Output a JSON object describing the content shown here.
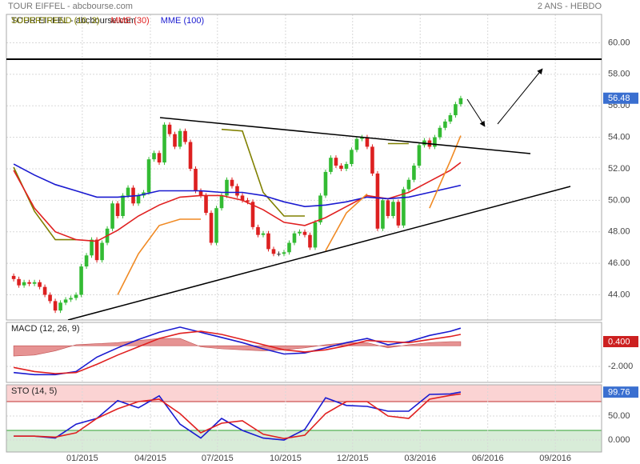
{
  "chart_data": [
    {
      "type": "candlestick",
      "title": "TOUR EIFFEL - abcbourse.com",
      "subtitle": "2 ANS - HEBDO",
      "open": [
        45.2,
        45.0,
        44.6,
        44.8,
        44.7,
        44.8,
        44.5,
        44.0,
        43.6,
        43.0,
        43.5,
        43.7,
        43.8,
        44.0,
        45.8,
        46.5,
        47.5,
        46.2,
        47.3,
        48.2,
        49.8,
        49.0,
        50.3,
        50.8,
        49.8,
        50.3,
        50.5,
        52.6,
        53.0,
        52.4,
        54.8,
        54.2,
        53.4,
        54.4,
        53.7,
        52.0,
        50.6,
        50.3,
        49.2,
        47.3,
        49.5,
        50.3,
        51.3,
        50.9,
        50.3,
        50.0,
        49.9,
        48.3,
        47.8,
        47.9,
        46.9,
        46.6,
        46.6,
        46.7,
        47.3,
        47.9,
        48.0,
        47.8,
        47.0,
        48.6,
        50.3,
        51.8,
        52.7,
        52.2,
        52.0,
        52.3,
        53.2,
        53.9,
        54.0,
        53.4,
        51.7,
        48.2,
        50.0,
        49.0,
        49.9,
        48.4,
        50.7,
        51.3,
        52.2,
        53.5,
        53.8,
        53.4,
        54.0,
        54.6,
        55.0,
        55.4,
        56.1
      ],
      "close": [
        45.0,
        44.6,
        44.8,
        44.7,
        44.8,
        44.5,
        44.0,
        43.6,
        43.0,
        43.5,
        43.7,
        43.8,
        44.0,
        45.8,
        46.5,
        47.5,
        46.2,
        47.3,
        48.2,
        49.8,
        49.0,
        50.3,
        50.8,
        49.8,
        50.3,
        50.5,
        52.6,
        53.0,
        52.4,
        54.8,
        54.2,
        53.4,
        54.4,
        53.7,
        52.0,
        50.6,
        50.3,
        49.2,
        47.3,
        49.5,
        50.3,
        51.3,
        50.9,
        50.3,
        50.0,
        49.9,
        48.3,
        47.8,
        47.9,
        46.9,
        46.6,
        46.6,
        46.7,
        47.3,
        47.9,
        48.0,
        47.8,
        47.0,
        48.6,
        50.3,
        51.8,
        52.7,
        52.2,
        52.0,
        52.3,
        53.2,
        53.9,
        54.0,
        53.4,
        51.7,
        48.2,
        50.0,
        49.0,
        49.9,
        48.4,
        50.7,
        51.3,
        52.2,
        53.5,
        53.8,
        53.4,
        54.0,
        54.6,
        55.0,
        55.4,
        56.1,
        56.48
      ],
      "up_color": "#33bb33",
      "down_color": "#dd2020",
      "xlim": [
        -1.4,
        113.1
      ],
      "xticks": [
        {
          "value": 13.2,
          "label": "01/2015"
        },
        {
          "value": 26.3,
          "label": "04/2015"
        },
        {
          "value": 39.2,
          "label": "07/2015"
        },
        {
          "value": 52.3,
          "label": "10/2015"
        },
        {
          "value": 65.2,
          "label": "12/2015"
        },
        {
          "value": 78.2,
          "label": "03/2016"
        },
        {
          "value": 91.2,
          "label": "06/2016"
        },
        {
          "value": 104.2,
          "label": "09/2016"
        }
      ],
      "ylim": [
        42.4,
        61.8
      ],
      "yticks": [
        {
          "value": 44,
          "label": "44.00"
        },
        {
          "value": 46,
          "label": "46.00"
        },
        {
          "value": 48,
          "label": "48.00"
        },
        {
          "value": 50,
          "label": "50.00"
        },
        {
          "value": 52,
          "label": "52.00"
        },
        {
          "value": 54,
          "label": "54.00"
        },
        {
          "value": 56,
          "label": "56.00"
        },
        {
          "value": 58,
          "label": "58.00"
        },
        {
          "value": 60,
          "label": "60.00"
        }
      ],
      "grid": true,
      "current": 56.48,
      "current_color": "#3a6fd0",
      "line_x": [
        0,
        4,
        8,
        12,
        16,
        20,
        24,
        28,
        32,
        36,
        40,
        44,
        48,
        52,
        56,
        60,
        64,
        68,
        72,
        76,
        80,
        84,
        86
      ],
      "series": [
        {
          "name": "SUPERTREND (10, 3)",
          "color": "#808000",
          "values": [
            52.1,
            49.3,
            47.5,
            47.5,
            null,
            null,
            null,
            null,
            null,
            null,
            54.5,
            54.4,
            50.5,
            49.0,
            49.0,
            null,
            null,
            null,
            53.6,
            53.6,
            null,
            null,
            null
          ]
        },
        {
          "name": "MME (30)",
          "color": "#e02020",
          "values": [
            51.9,
            49.5,
            48.0,
            47.5,
            47.4,
            48.1,
            49.0,
            49.7,
            50.2,
            50.3,
            50.3,
            50.0,
            49.4,
            48.6,
            48.4,
            48.9,
            49.6,
            50.3,
            50.1,
            50.5,
            51.2,
            51.9,
            52.4
          ]
        },
        {
          "name": "MME (100)",
          "color": "#1a1ad0",
          "values": [
            52.3,
            51.6,
            51.0,
            50.6,
            50.2,
            50.2,
            50.3,
            50.6,
            50.6,
            50.6,
            50.5,
            50.5,
            50.3,
            49.9,
            49.6,
            49.7,
            49.9,
            50.2,
            50.1,
            50.2,
            50.5,
            50.8,
            50.95
          ]
        },
        {
          "color": "#f08a24",
          "values": [
            null,
            null,
            null,
            null,
            null,
            44.0,
            46.6,
            48.4,
            48.8,
            48.8,
            null,
            null,
            null,
            null,
            null,
            46.8,
            49.2,
            50.4,
            null,
            null,
            49.5,
            52.5,
            54.1
          ]
        }
      ]
    },
    {
      "type": "macd",
      "title": "MACD (12, 26, 9)",
      "ylim": [
        -3.55,
        2.26
      ],
      "yticks": [
        {
          "value": -2,
          "label": "-2.000"
        }
      ],
      "current": {
        "value": 0.4,
        "label": "0.400"
      },
      "current_color": "#cc2020",
      "histogram": {
        "color": "#e07878",
        "values": [
          -1.0,
          -0.9,
          -0.5,
          0.1,
          0.2,
          0.3,
          0.5,
          0.7,
          0.7,
          -0.1,
          -0.3,
          -0.4,
          -0.5,
          -0.4,
          -0.2,
          0.1,
          0.3,
          0.3,
          -0.2,
          0.1,
          0.3,
          0.4,
          0.4
        ]
      },
      "series": [
        {
          "color": "#1a1ad0",
          "values": [
            -2.6,
            -2.8,
            -2.8,
            -2.5,
            -1.1,
            -0.2,
            0.6,
            1.3,
            1.8,
            1.3,
            0.8,
            0.3,
            -0.3,
            -0.8,
            -0.7,
            -0.2,
            0.3,
            0.7,
            0.1,
            0.4,
            1.0,
            1.4,
            1.7
          ]
        },
        {
          "color": "#e02020",
          "values": [
            -2.1,
            -2.5,
            -2.7,
            -2.6,
            -1.8,
            -0.9,
            -0.1,
            0.7,
            1.2,
            1.4,
            1.1,
            0.6,
            0.1,
            -0.4,
            -0.6,
            -0.4,
            0.0,
            0.5,
            0.4,
            0.3,
            0.6,
            0.9,
            1.1
          ]
        }
      ]
    },
    {
      "type": "stochastic",
      "title": "STO (14, 5)",
      "ylim": [
        -25,
        115
      ],
      "yticks": [
        {
          "value": 50,
          "label": "50.00"
        },
        {
          "value": 0,
          "label": "0.000"
        }
      ],
      "current": 99.76,
      "current_color": "#3a6fd0",
      "overbought": 80,
      "oversold": 20,
      "overbought_color": "#fbd3d3",
      "oversold_color": "#d8ecd8",
      "series": [
        {
          "color": "#1a1ad0",
          "values": [
            8,
            8,
            4,
            33,
            45,
            82,
            67,
            92,
            33,
            4,
            45,
            20,
            4,
            0,
            22,
            88,
            72,
            70,
            60,
            60,
            95,
            96,
            99.76
          ]
        },
        {
          "color": "#e02020",
          "values": [
            8,
            8,
            6,
            15,
            45,
            65,
            80,
            85,
            55,
            15,
            35,
            40,
            12,
            3,
            10,
            55,
            80,
            80,
            50,
            45,
            85,
            93,
            96
          ]
        }
      ]
    }
  ]
}
